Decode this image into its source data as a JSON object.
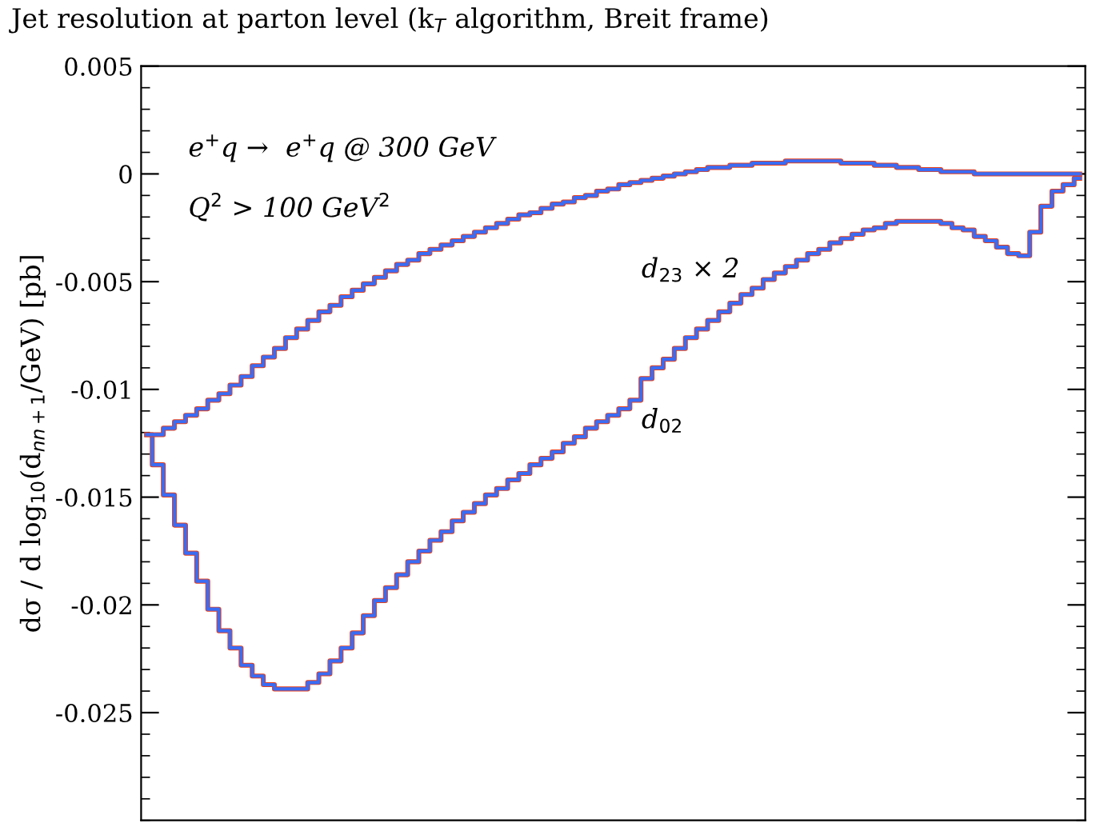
{
  "chart_data": {
    "type": "step",
    "title": "Jet resolution at parton level (k$_{T}$ algorithm, Breit frame)",
    "ylabel": "dσ / d log$_{10}$(d$_{nn+1}$/GeV) [pb]",
    "annotations": [
      "e$^{+}$q →  e$^{+}$q @ 300 GeV",
      "Q$^{2}$ > 100 GeV$^{2}$",
      "d$_{23}$ × 2",
      "d$_{02}$"
    ],
    "categories": [
      null,
      null,
      null,
      null,
      null,
      null,
      null,
      null,
      null,
      null,
      null,
      null,
      null,
      null,
      null,
      null,
      null,
      null,
      null,
      null,
      null,
      null,
      null,
      null,
      null,
      null,
      null,
      null,
      null,
      null,
      null,
      null,
      null,
      null,
      null,
      null,
      null,
      null,
      null,
      null,
      null,
      null,
      null,
      null,
      null,
      null,
      null,
      null,
      null,
      null,
      null,
      null,
      null,
      null,
      null,
      null,
      null,
      null,
      null,
      null,
      null,
      null,
      null,
      null,
      null,
      null,
      null,
      null,
      null,
      null,
      null,
      null,
      null,
      null,
      null,
      null,
      null,
      null,
      null,
      null,
      null,
      null,
      null,
      null,
      null
    ],
    "ylim": [
      -0.03,
      0.005
    ],
    "yticks": [
      0.005,
      0,
      -0.005,
      -0.01,
      -0.015,
      -0.02,
      -0.025
    ],
    "grid": false,
    "legend": false,
    "series": [
      {
        "color": "#e8401c",
        "values": [
          -0.0121,
          -0.0135,
          -0.0149,
          -0.0163,
          -0.0176,
          -0.0189,
          -0.0202,
          -0.0212,
          -0.022,
          -0.0228,
          -0.0233,
          -0.0237,
          -0.0239,
          -0.0239,
          -0.0239,
          -0.0236,
          -0.0232,
          -0.0226,
          -0.022,
          -0.0213,
          -0.0205,
          -0.0198,
          -0.0192,
          -0.0186,
          -0.018,
          -0.0175,
          -0.017,
          -0.0166,
          -0.0161,
          -0.0157,
          -0.0153,
          -0.0149,
          -0.0146,
          -0.0142,
          -0.0139,
          -0.0135,
          -0.0132,
          -0.0129,
          -0.0125,
          -0.0122,
          -0.0118,
          -0.0115,
          -0.0112,
          -0.0109,
          -0.0105,
          -0.0095,
          -0.009,
          -0.0086,
          -0.0081,
          -0.0076,
          -0.0072,
          -0.0068,
          -0.0064,
          -0.006,
          -0.0056,
          -0.0053,
          -0.0049,
          -0.0046,
          -0.0043,
          -0.004,
          -0.0037,
          -0.0035,
          -0.0032,
          -0.003,
          -0.0028,
          -0.0026,
          -0.0025,
          -0.0023,
          -0.0022,
          -0.0022,
          -0.0022,
          -0.0022,
          -0.0023,
          -0.0025,
          -0.0026,
          -0.0029,
          -0.0031,
          -0.0034,
          -0.0037,
          -0.0038,
          -0.0027,
          -0.0015,
          -0.0008,
          -0.0005,
          -0.0002
        ]
      },
      {
        "color": "#3a6cf4",
        "values": [
          -0.0121,
          -0.0135,
          -0.0149,
          -0.0163,
          -0.0176,
          -0.0189,
          -0.0202,
          -0.0212,
          -0.022,
          -0.0228,
          -0.0233,
          -0.0237,
          -0.0239,
          -0.0239,
          -0.0239,
          -0.0236,
          -0.0232,
          -0.0226,
          -0.022,
          -0.0213,
          -0.0205,
          -0.0198,
          -0.0192,
          -0.0186,
          -0.018,
          -0.0175,
          -0.017,
          -0.0166,
          -0.0161,
          -0.0157,
          -0.0153,
          -0.0149,
          -0.0146,
          -0.0142,
          -0.0139,
          -0.0135,
          -0.0132,
          -0.0129,
          -0.0125,
          -0.0122,
          -0.0118,
          -0.0115,
          -0.0112,
          -0.0109,
          -0.0105,
          -0.0095,
          -0.009,
          -0.0086,
          -0.0081,
          -0.0076,
          -0.0072,
          -0.0068,
          -0.0064,
          -0.006,
          -0.0056,
          -0.0053,
          -0.0049,
          -0.0046,
          -0.0043,
          -0.004,
          -0.0037,
          -0.0035,
          -0.0032,
          -0.003,
          -0.0028,
          -0.0026,
          -0.0025,
          -0.0023,
          -0.0022,
          -0.0022,
          -0.0022,
          -0.0022,
          -0.0023,
          -0.0025,
          -0.0026,
          -0.0029,
          -0.0031,
          -0.0034,
          -0.0037,
          -0.0038,
          -0.0027,
          -0.0015,
          -0.0008,
          -0.0005,
          -0.0002
        ]
      },
      {
        "color": "#e8401c",
        "values": [
          -0.0121,
          -0.0121,
          -0.0118,
          -0.0115,
          -0.0112,
          -0.0109,
          -0.0105,
          -0.0102,
          -0.0098,
          -0.0094,
          -0.0089,
          -0.0085,
          -0.0081,
          -0.0076,
          -0.0072,
          -0.0068,
          -0.0064,
          -0.0061,
          -0.0057,
          -0.0054,
          -0.0051,
          -0.0048,
          -0.0045,
          -0.0042,
          -0.004,
          -0.0037,
          -0.0035,
          -0.0033,
          -0.0031,
          -0.0029,
          -0.0027,
          -0.0025,
          -0.0023,
          -0.0021,
          -0.0019,
          -0.0018,
          -0.0016,
          -0.0014,
          -0.0013,
          -0.0011,
          -0.001,
          -0.0008,
          -0.0007,
          -0.0005,
          -0.0004,
          -0.0003,
          -0.0002,
          -0.0001,
          0.0,
          0.0001,
          0.0002,
          0.0003,
          0.0003,
          0.0004,
          0.0004,
          0.0005,
          0.0005,
          0.0005,
          0.0006,
          0.0006,
          0.0006,
          0.0006,
          0.0006,
          0.0005,
          0.0005,
          0.0005,
          0.0004,
          0.0004,
          0.0003,
          0.0003,
          0.0002,
          0.0002,
          0.0001,
          0.0001,
          0.0001,
          0.0,
          0.0,
          0.0,
          0.0,
          0.0,
          0.0,
          0.0,
          0.0,
          0.0,
          0.0
        ]
      },
      {
        "color": "#3a6cf4",
        "values": [
          -0.0121,
          -0.0121,
          -0.0118,
          -0.0115,
          -0.0112,
          -0.0109,
          -0.0105,
          -0.0102,
          -0.0098,
          -0.0094,
          -0.0089,
          -0.0085,
          -0.0081,
          -0.0076,
          -0.0072,
          -0.0068,
          -0.0064,
          -0.0061,
          -0.0057,
          -0.0054,
          -0.0051,
          -0.0048,
          -0.0045,
          -0.0042,
          -0.004,
          -0.0037,
          -0.0035,
          -0.0033,
          -0.0031,
          -0.0029,
          -0.0027,
          -0.0025,
          -0.0023,
          -0.0021,
          -0.0019,
          -0.0018,
          -0.0016,
          -0.0014,
          -0.0013,
          -0.0011,
          -0.001,
          -0.0008,
          -0.0007,
          -0.0005,
          -0.0004,
          -0.0003,
          -0.0002,
          -0.0001,
          0.0,
          0.0001,
          0.0002,
          0.0003,
          0.0003,
          0.0004,
          0.0004,
          0.0005,
          0.0005,
          0.0005,
          0.0006,
          0.0006,
          0.0006,
          0.0006,
          0.0006,
          0.0005,
          0.0005,
          0.0005,
          0.0004,
          0.0004,
          0.0003,
          0.0003,
          0.0002,
          0.0002,
          0.0001,
          0.0001,
          0.0001,
          0.0,
          0.0,
          0.0,
          0.0,
          0.0,
          0.0,
          0.0,
          0.0,
          0.0,
          0.0
        ]
      }
    ]
  }
}
